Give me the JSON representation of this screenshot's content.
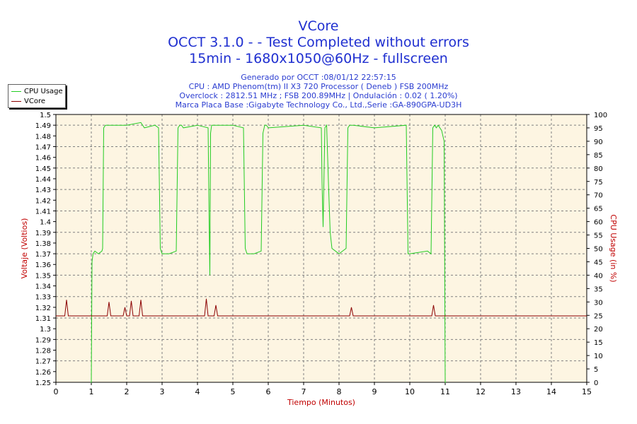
{
  "header": {
    "title": "VCore",
    "subtitle1": "OCCT 3.1.0 -  - Test Completed without errors",
    "subtitle2": "15min - 1680x1050@60Hz - fullscreen"
  },
  "info": {
    "line1": "Generado por OCCT :08/01/12 22:57:15",
    "line2": "CPU : AMD Phenom(tm) II X3 720 Processor ( Deneb ) FSB 200MHz",
    "line3": "Overclock : 2812.51 MHz ; FSB 200.89MHz | Ondulación : 0.02 ( 1.20%)",
    "line4": "Marca Placa Base :Gigabyte Technology Co., Ltd.,Serie :GA-890GPA-UD3H"
  },
  "legend": {
    "items": [
      {
        "label": "CPU Usage",
        "color": "#22cc22"
      },
      {
        "label": "VCore",
        "color": "#8b0000"
      }
    ]
  },
  "colors": {
    "plot_bg": "#fdf5e2",
    "grid": "#808080",
    "axis_label": "#c00000",
    "title": "#1f2fd0",
    "cpu": "#22cc22",
    "vcore": "#8b0000"
  },
  "chart_data": {
    "type": "line",
    "xlabel": "Tiempo (Minutos)",
    "ylabel": "Voltaje (Voltios)",
    "y2label": "CPU Usage (in %)",
    "xlim": [
      0,
      15
    ],
    "ylim": [
      1.25,
      1.5
    ],
    "y2lim": [
      0,
      100
    ],
    "x_ticks": [
      "0",
      "1",
      "2",
      "3",
      "4",
      "5",
      "6",
      "7",
      "8",
      "9",
      "10",
      "11",
      "12",
      "13",
      "14",
      "15"
    ],
    "y_ticks": [
      "1.25",
      "1.26",
      "1.27",
      "1.28",
      "1.29",
      "1.3",
      "1.31",
      "1.32",
      "1.33",
      "1.34",
      "1.35",
      "1.36",
      "1.37",
      "1.38",
      "1.39",
      "1.4",
      "1.41",
      "1.42",
      "1.43",
      "1.44",
      "1.45",
      "1.46",
      "1.47",
      "1.48",
      "1.49",
      "1.5"
    ],
    "y2_ticks": [
      "0",
      "5",
      "10",
      "15",
      "20",
      "25",
      "30",
      "35",
      "40",
      "45",
      "50",
      "55",
      "60",
      "65",
      "70",
      "75",
      "80",
      "85",
      "90",
      "95",
      "100"
    ],
    "grid": true,
    "series": [
      {
        "name": "CPU Usage",
        "axis": "right",
        "x": [
          0.98,
          1.0,
          1.02,
          1.05,
          1.1,
          1.2,
          1.3,
          1.32,
          1.35,
          1.4,
          1.5,
          2.0,
          2.4,
          2.5,
          2.8,
          2.9,
          2.95,
          3.0,
          3.2,
          3.4,
          3.45,
          3.5,
          3.55,
          3.6,
          4.0,
          4.3,
          4.33,
          4.35,
          4.37,
          4.4,
          5.0,
          5.3,
          5.35,
          5.4,
          5.6,
          5.8,
          5.85,
          5.9,
          5.95,
          6.0,
          7.0,
          7.5,
          7.52,
          7.55,
          7.6,
          7.65,
          7.7,
          7.75,
          7.8,
          7.9,
          8.0,
          8.2,
          8.25,
          8.3,
          8.4,
          9.0,
          9.9,
          9.95,
          10.0,
          10.5,
          10.6,
          10.65,
          10.7,
          10.75,
          10.8,
          10.9,
          10.97,
          11.0,
          11.02
        ],
        "values": [
          0,
          0,
          45,
          48,
          49,
          48,
          49,
          50,
          95,
          96,
          96,
          96,
          97,
          95,
          96,
          95,
          50,
          48,
          48,
          49,
          95,
          96,
          96,
          95,
          96,
          95,
          60,
          40,
          93,
          96,
          96,
          95,
          50,
          48,
          48,
          49,
          93,
          96,
          96,
          95,
          96,
          95,
          75,
          58,
          95,
          96,
          75,
          56,
          50,
          49,
          48,
          50,
          95,
          96,
          96,
          95,
          96,
          48,
          48,
          49,
          48,
          95,
          96,
          95,
          96,
          94,
          90,
          0,
          0
        ]
      },
      {
        "name": "VCore",
        "axis": "left",
        "x": [
          0.0,
          0.25,
          0.3,
          0.35,
          1.45,
          1.5,
          1.55,
          1.9,
          1.95,
          2.0,
          2.08,
          2.13,
          2.18,
          2.35,
          2.4,
          2.45,
          4.2,
          4.25,
          4.3,
          4.47,
          4.52,
          4.57,
          8.3,
          8.35,
          8.4,
          10.62,
          10.67,
          10.72,
          15.0
        ],
        "values": [
          1.312,
          1.312,
          1.327,
          1.312,
          1.312,
          1.325,
          1.312,
          1.312,
          1.32,
          1.312,
          1.312,
          1.326,
          1.312,
          1.312,
          1.327,
          1.312,
          1.312,
          1.328,
          1.312,
          1.312,
          1.322,
          1.312,
          1.312,
          1.32,
          1.312,
          1.312,
          1.322,
          1.312,
          1.312
        ]
      }
    ]
  }
}
